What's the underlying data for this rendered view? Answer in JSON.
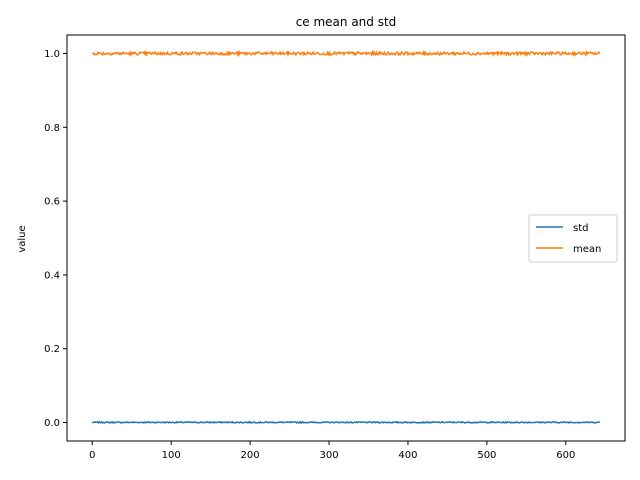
{
  "chart_data": {
    "type": "line",
    "title": "ce mean and std",
    "xlabel": "",
    "ylabel": "value",
    "xlim": [
      -32,
      675
    ],
    "ylim": [
      -0.05,
      1.05
    ],
    "xticks": [
      0,
      100,
      200,
      300,
      400,
      500,
      600
    ],
    "yticks": [
      0.0,
      0.2,
      0.4,
      0.6,
      0.8,
      1.0
    ],
    "xtick_labels": [
      "0",
      "100",
      "200",
      "300",
      "400",
      "500",
      "600"
    ],
    "ytick_labels": [
      "0.0",
      "0.2",
      "0.4",
      "0.6",
      "0.8",
      "1.0"
    ],
    "grid": false,
    "legend": "center right",
    "x": {
      "start": 0,
      "end": 643,
      "step": 1
    },
    "series": [
      {
        "name": "std",
        "color": "#1f77b4",
        "approx_value": 0.0005,
        "noise": 0.0015
      },
      {
        "name": "mean",
        "color": "#ff7f0e",
        "approx_value": 1.0,
        "noise": 0.004
      }
    ]
  }
}
